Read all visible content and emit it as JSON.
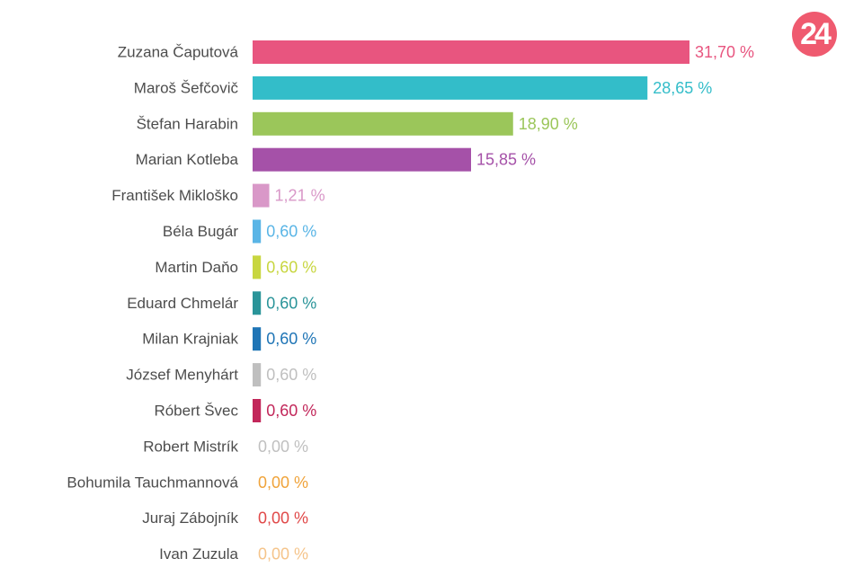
{
  "logo": {
    "text": "24",
    "color": "#ef5a6f"
  },
  "chart_data": {
    "type": "bar",
    "orientation": "horizontal",
    "categories": [
      "Zuzana Čaputová",
      "Maroš Šefčovič",
      "Štefan Harabin",
      "Marian Kotleba",
      "František Mikloško",
      "Béla Bugár",
      "Martin Daňo",
      "Eduard Chmelár",
      "Milan Krajniak",
      "József Menyhárt",
      "Róbert Švec",
      "Robert Mistrík",
      "Bohumila Tauchmannová",
      "Juraj Zábojník",
      "Ivan Zuzula"
    ],
    "values": [
      31.7,
      28.65,
      18.9,
      15.85,
      1.21,
      0.6,
      0.6,
      0.6,
      0.6,
      0.6,
      0.6,
      0.0,
      0.0,
      0.0,
      0.0
    ],
    "value_labels": [
      "31,70 %",
      "28,65 %",
      "18,90 %",
      "15,85 %",
      "1,21 %",
      "0,60 %",
      "0,60 %",
      "0,60 %",
      "0,60 %",
      "0,60 %",
      "0,60 %",
      "0,00 %",
      "0,00 %",
      "0,00 %",
      "0,00 %"
    ],
    "colors": [
      "#e8557f",
      "#33bdc9",
      "#9bc65a",
      "#a551a8",
      "#d998c8",
      "#5ab5e6",
      "#c8d640",
      "#2a9499",
      "#1f75b6",
      "#bfbfbf",
      "#c2275a",
      "#c0c0c0",
      "#f0a33a",
      "#e04848",
      "#f5c48a"
    ],
    "xlim": [
      0,
      31.7
    ],
    "grid": false,
    "legend": "none",
    "xlabel": "",
    "ylabel": ""
  }
}
